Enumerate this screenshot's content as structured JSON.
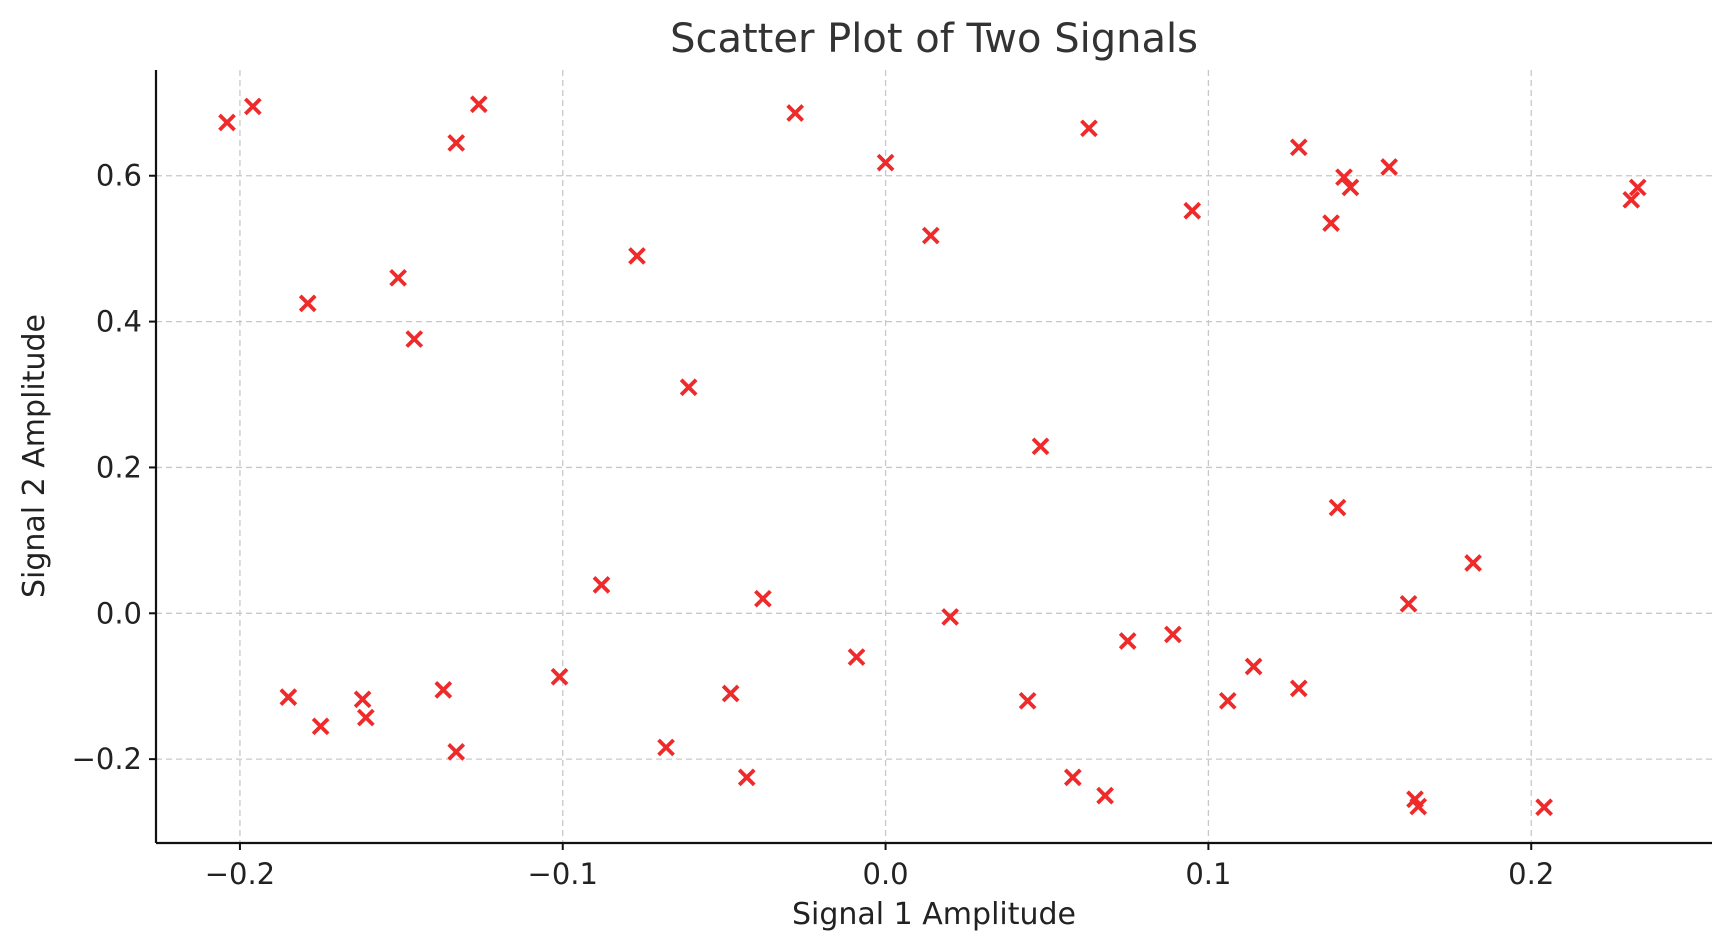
{
  "chart_data": {
    "type": "scatter",
    "title": "Scatter Plot of Two Signals",
    "xlabel": "Signal 1 Amplitude",
    "ylabel": "Signal 2 Amplitude",
    "xlim": [
      -0.226,
      0.256
    ],
    "ylim": [
      -0.315,
      0.745
    ],
    "xticks": [
      -0.2,
      -0.1,
      0.0,
      0.1,
      0.2
    ],
    "xtick_labels": [
      "−0.2",
      "−0.1",
      "0.0",
      "0.1",
      "0.2"
    ],
    "yticks": [
      -0.2,
      0.0,
      0.2,
      0.4,
      0.6
    ],
    "ytick_labels": [
      "−0.2",
      "0.0",
      "0.2",
      "0.4",
      "0.6"
    ],
    "grid": true,
    "marker": "x",
    "color": "#ee2a2a",
    "points": [
      {
        "x": -0.204,
        "y": 0.673
      },
      {
        "x": -0.196,
        "y": 0.695
      },
      {
        "x": -0.179,
        "y": 0.425
      },
      {
        "x": -0.185,
        "y": -0.115
      },
      {
        "x": -0.175,
        "y": -0.155
      },
      {
        "x": -0.162,
        "y": -0.118
      },
      {
        "x": -0.161,
        "y": -0.143
      },
      {
        "x": -0.151,
        "y": 0.46
      },
      {
        "x": -0.146,
        "y": 0.376
      },
      {
        "x": -0.137,
        "y": -0.105
      },
      {
        "x": -0.133,
        "y": 0.645
      },
      {
        "x": -0.133,
        "y": -0.19
      },
      {
        "x": -0.126,
        "y": 0.698
      },
      {
        "x": -0.101,
        "y": -0.087
      },
      {
        "x": -0.088,
        "y": 0.039
      },
      {
        "x": -0.077,
        "y": 0.49
      },
      {
        "x": -0.068,
        "y": -0.184
      },
      {
        "x": -0.061,
        "y": 0.31
      },
      {
        "x": -0.048,
        "y": -0.11
      },
      {
        "x": -0.043,
        "y": -0.225
      },
      {
        "x": -0.038,
        "y": 0.02
      },
      {
        "x": -0.028,
        "y": 0.686
      },
      {
        "x": -0.009,
        "y": -0.06
      },
      {
        "x": 0.0,
        "y": 0.618
      },
      {
        "x": 0.014,
        "y": 0.518
      },
      {
        "x": 0.02,
        "y": -0.005
      },
      {
        "x": 0.044,
        "y": -0.12
      },
      {
        "x": 0.048,
        "y": 0.229
      },
      {
        "x": 0.058,
        "y": -0.225
      },
      {
        "x": 0.063,
        "y": 0.665
      },
      {
        "x": 0.068,
        "y": -0.25
      },
      {
        "x": 0.075,
        "y": -0.038
      },
      {
        "x": 0.089,
        "y": -0.029
      },
      {
        "x": 0.095,
        "y": 0.552
      },
      {
        "x": 0.106,
        "y": -0.12
      },
      {
        "x": 0.114,
        "y": -0.073
      },
      {
        "x": 0.128,
        "y": 0.639
      },
      {
        "x": 0.128,
        "y": -0.103
      },
      {
        "x": 0.138,
        "y": 0.535
      },
      {
        "x": 0.14,
        "y": 0.145
      },
      {
        "x": 0.142,
        "y": 0.598
      },
      {
        "x": 0.144,
        "y": 0.584
      },
      {
        "x": 0.156,
        "y": 0.612
      },
      {
        "x": 0.162,
        "y": 0.013
      },
      {
        "x": 0.164,
        "y": -0.255
      },
      {
        "x": 0.165,
        "y": -0.265
      },
      {
        "x": 0.182,
        "y": 0.069
      },
      {
        "x": 0.204,
        "y": -0.266
      },
      {
        "x": 0.231,
        "y": 0.567
      },
      {
        "x": 0.233,
        "y": 0.584
      }
    ]
  }
}
